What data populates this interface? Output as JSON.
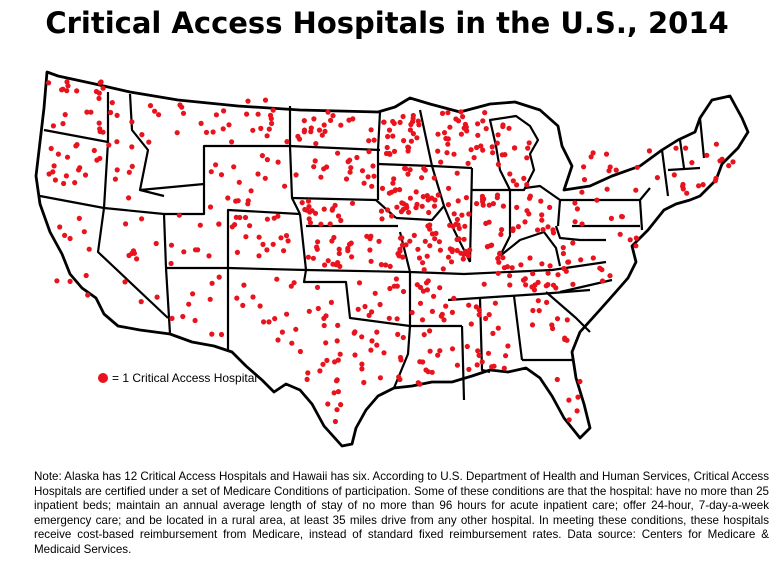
{
  "title": "Critical Access Hospitals in the U.S., 2014",
  "legend": {
    "label": "= 1 Critical Access Hospital",
    "dot_color": "#e8131c"
  },
  "note": "Note: Alaska has 12 Critical Access Hospitals and Hawaii has six. According to U.S. Department of Health and Human Services, Critical Access Hospitals are certified under a set of Medicare Conditions of participation. Some of these conditions are that the hospital: have no more than 25 inpatient beds; maintain an annual average length of stay of no more than 96 hours for acute inpatient care; offer 24-hour, 7-day-a-week emergency care; and be located in a rural area, at least 35 miles drive from any other hospital. In meeting these conditions, these hospitals receive cost-based reimbursement from Medicare, instead of standard fixed reimbursement rates. Data source: Centers for Medicare & Medicaid Services.",
  "colors": {
    "state_border": "#000000",
    "state_fill": "#ffffff",
    "hospital_dot": "#e8131c"
  }
}
